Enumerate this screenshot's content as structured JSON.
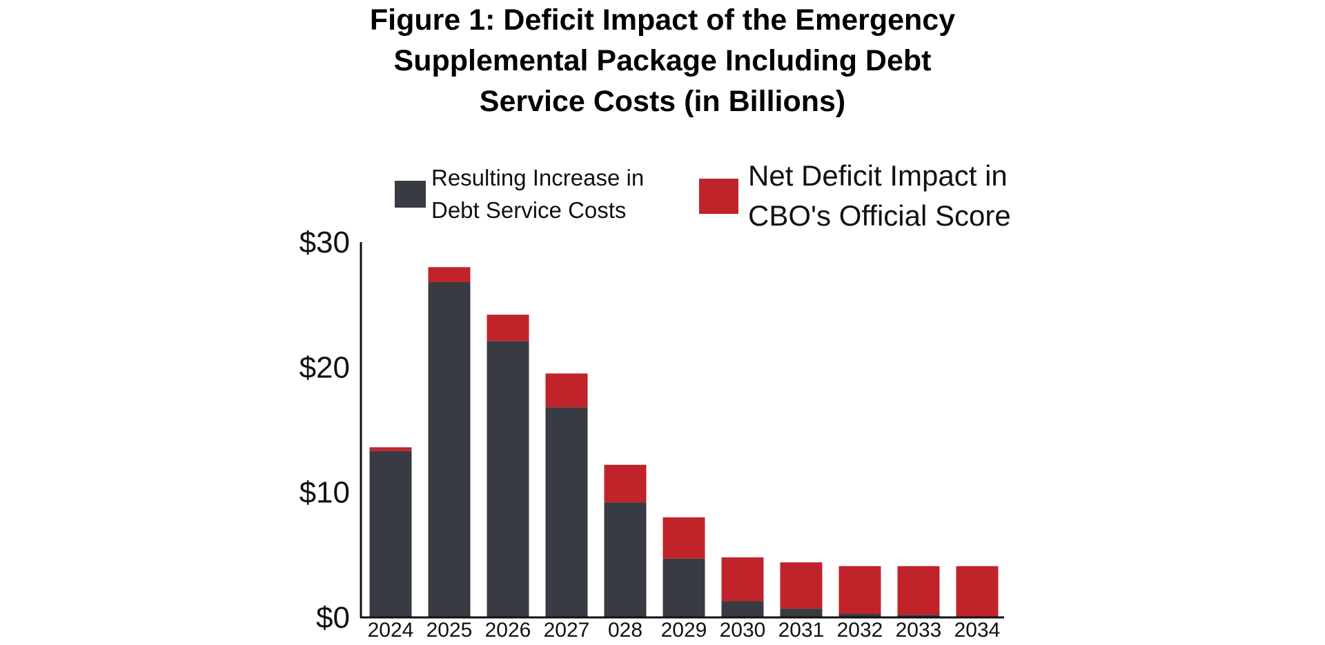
{
  "chart_data": {
    "type": "bar",
    "stacked": true,
    "title_lines": [
      "Figure 1: Deficit Impact of the Emergency",
      "Supplemental Package Including Debt",
      "Service Costs (in Billions)"
    ],
    "categories": [
      "2024",
      "2025",
      "2026",
      "2027",
      "028",
      "2029",
      "2030",
      "2031",
      "2032",
      "2033",
      "2034"
    ],
    "series": [
      {
        "name_lines": [
          "Resulting Increase in",
          "Debt Service Costs"
        ],
        "color": "#393b43",
        "values": [
          13.3,
          26.8,
          22.1,
          16.8,
          9.2,
          4.7,
          1.3,
          0.7,
          0.3,
          0.2,
          0.0
        ]
      },
      {
        "name_lines": [
          "Net Deficit Impact in",
          "CBO's Official Score"
        ],
        "color": "#c0232a",
        "values": [
          0.3,
          1.2,
          2.1,
          2.7,
          3.0,
          3.3,
          3.5,
          3.7,
          3.8,
          3.9,
          4.1
        ]
      }
    ],
    "y_tick_labels": [
      "$0",
      "$10",
      "$20",
      "$30"
    ],
    "y_ticks": [
      0,
      10,
      20,
      30
    ],
    "ylim": [
      0,
      30
    ],
    "grid": false,
    "legend_position": "top"
  }
}
